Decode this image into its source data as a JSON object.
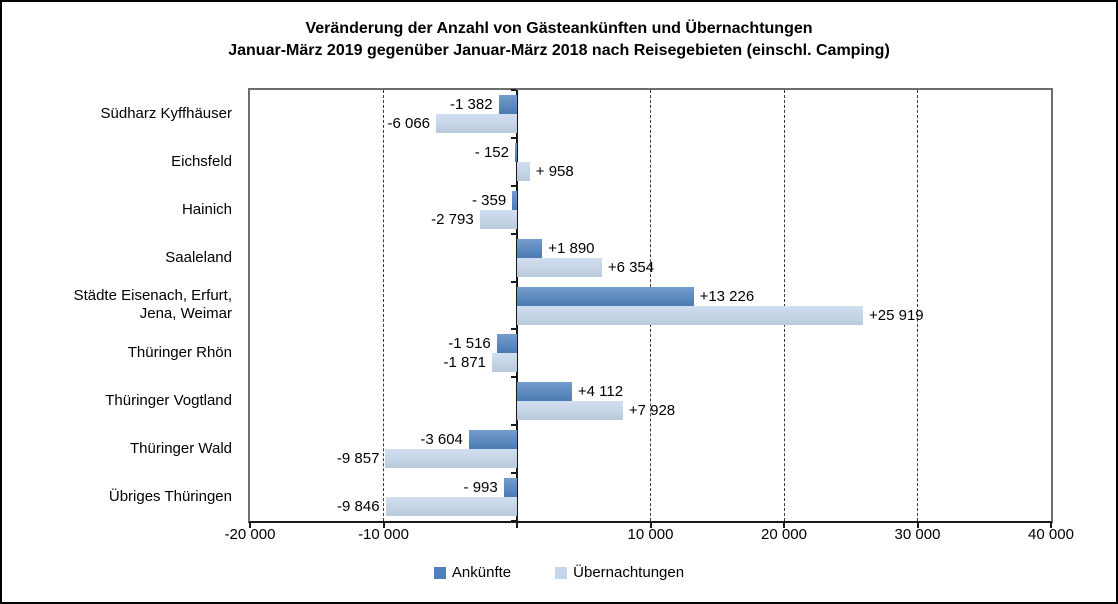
{
  "title": {
    "line1": "Veränderung der Anzahl von Gästeankünften und Übernachtungen",
    "line2": "Januar-März 2019 gegenüber Januar-März 2018 nach Reisegebieten (einschl. Camping)"
  },
  "legend": {
    "items": [
      {
        "name": "Ankünfte",
        "color": "#4f81bd"
      },
      {
        "name": "Übernachtungen",
        "color": "#c5d6eb"
      }
    ]
  },
  "chart_data": {
    "type": "bar",
    "orientation": "horizontal",
    "title": "Veränderung der Anzahl von Gästeankünften und Übernachtungen Januar-März 2019 gegenüber Januar-März 2018 nach Reisegebieten (einschl. Camping)",
    "categories": [
      "Südharz Kyffhäuser",
      "Eichsfeld",
      "Hainich",
      "Saaleland",
      "Städte Eisenach, Erfurt,\nJena, Weimar",
      "Thüringer Rhön",
      "Thüringer Vogtland",
      "Thüringer Wald",
      "Übriges Thüringen"
    ],
    "series": [
      {
        "name": "Ankünfte",
        "color": "#4f81bd",
        "values": [
          -1382,
          -152,
          -359,
          1890,
          13226,
          -1516,
          4112,
          -3604,
          -993
        ],
        "labels": [
          "-1 382",
          "- 152",
          "- 359",
          "+1 890",
          "+13 226",
          "-1 516",
          "+4 112",
          "-3 604",
          "- 993"
        ]
      },
      {
        "name": "Übernachtungen",
        "color": "#c5d6eb",
        "values": [
          -6066,
          958,
          -2793,
          6354,
          25919,
          -1871,
          7928,
          -9857,
          -9846
        ],
        "labels": [
          "-6 066",
          "+ 958",
          "-2 793",
          "+6 354",
          "+25 919",
          "-1 871",
          "+7 928",
          "-9 857",
          "-9 846"
        ]
      }
    ],
    "xlim": [
      -20000,
      40000
    ],
    "x_ticks": [
      {
        "value": -20000,
        "label": "-20 000"
      },
      {
        "value": -10000,
        "label": "-10 000"
      },
      {
        "value": 0,
        "label": ""
      },
      {
        "value": 10000,
        "label": "10 000"
      },
      {
        "value": 20000,
        "label": "20 000"
      },
      {
        "value": 30000,
        "label": "30 000"
      },
      {
        "value": 40000,
        "label": "40 000"
      }
    ],
    "gridlines": [
      -10000,
      10000,
      20000,
      30000
    ],
    "grid_style": "dashed",
    "legend_position": "bottom"
  }
}
